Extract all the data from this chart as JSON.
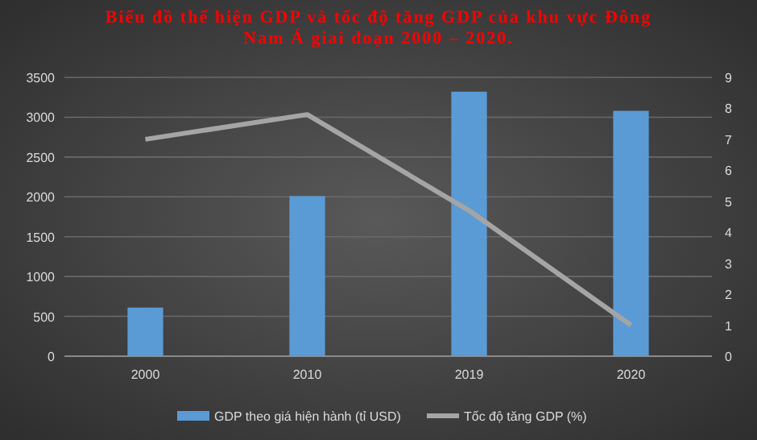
{
  "chart_data": {
    "type": "bar",
    "title": "Biểu đồ thể hiện GDP và tốc độ tăng GDP của khu vực Đông Nam Á giai đoạn 2000 – 2020.",
    "categories": [
      "2000",
      "2010",
      "2019",
      "2020"
    ],
    "series": [
      {
        "name": "GDP theo giá hiện hành (tỉ USD)",
        "color": "#5b9bd5",
        "values": [
          610,
          2010,
          3320,
          3080
        ]
      },
      {
        "name": "Tốc độ tăng GDP (%)",
        "type": "line",
        "axis": "y2",
        "color": "#a5a5a5",
        "values": [
          7.0,
          7.8,
          4.7,
          1.0
        ]
      }
    ],
    "ylim": [
      0,
      3500
    ],
    "yticks": [
      0,
      500,
      1000,
      1500,
      2000,
      2500,
      3000,
      3500
    ],
    "y2lim": [
      0,
      9
    ],
    "y2ticks": [
      0,
      1,
      2,
      3,
      4,
      5,
      6,
      7,
      8,
      9
    ],
    "grid": "y",
    "legend": "bottom",
    "marker": "none"
  }
}
